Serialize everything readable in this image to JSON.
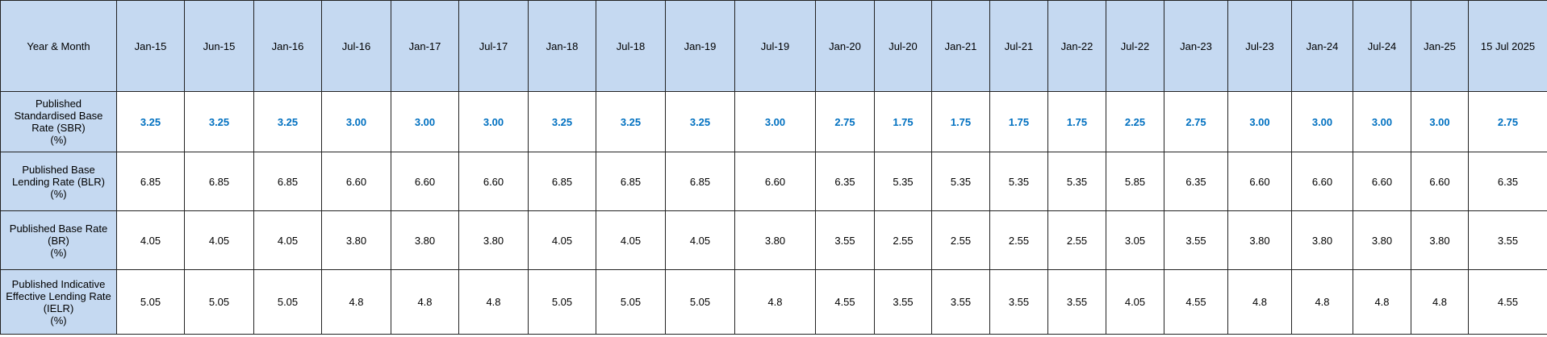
{
  "table": {
    "header": [
      "Year & Month",
      "Jan-15",
      "Jun-15",
      "Jan-16",
      "Jul-16",
      "Jan-17",
      "Jul-17",
      "Jan-18",
      "Jul-18",
      "Jan-19",
      "Jul-19",
      "Jan-20",
      "Jul-20",
      "Jan-21",
      "Jul-21",
      "Jan-22",
      "Jul-22",
      "Jan-23",
      "Jul-23",
      "Jan-24",
      "Jul-24",
      "Jan-25",
      "15 Jul 2025"
    ],
    "rows": [
      {
        "label": "Published Standardised Base Rate (SBR)\n(%)",
        "values": [
          "3.25",
          "3.25",
          "3.25",
          "3.00",
          "3.00",
          "3.00",
          "3.25",
          "3.25",
          "3.25",
          "3.00",
          "2.75",
          "1.75",
          "1.75",
          "1.75",
          "1.75",
          "2.25",
          "2.75",
          "3.00",
          "3.00",
          "3.00",
          "3.00",
          "2.75"
        ]
      },
      {
        "label": "Published Base Lending Rate (BLR)\n(%)",
        "values": [
          "6.85",
          "6.85",
          "6.85",
          "6.60",
          "6.60",
          "6.60",
          "6.85",
          "6.85",
          "6.85",
          "6.60",
          "6.35",
          "5.35",
          "5.35",
          "5.35",
          "5.35",
          "5.85",
          "6.35",
          "6.60",
          "6.60",
          "6.60",
          "6.60",
          "6.35"
        ]
      },
      {
        "label": "Published Base Rate (BR)\n(%)",
        "values": [
          "4.05",
          "4.05",
          "4.05",
          "3.80",
          "3.80",
          "3.80",
          "4.05",
          "4.05",
          "4.05",
          "3.80",
          "3.55",
          "2.55",
          "2.55",
          "2.55",
          "2.55",
          "3.05",
          "3.55",
          "3.80",
          "3.80",
          "3.80",
          "3.80",
          "3.55"
        ]
      },
      {
        "label": "Published Indicative Effective Lending Rate (IELR)\n(%)",
        "values": [
          "5.05",
          "5.05",
          "5.05",
          "4.8",
          "4.8",
          "4.8",
          "5.05",
          "5.05",
          "5.05",
          "4.8",
          "4.55",
          "3.55",
          "3.55",
          "3.55",
          "3.55",
          "4.05",
          "4.55",
          "4.8",
          "4.8",
          "4.8",
          "4.8",
          "4.55"
        ]
      }
    ]
  }
}
